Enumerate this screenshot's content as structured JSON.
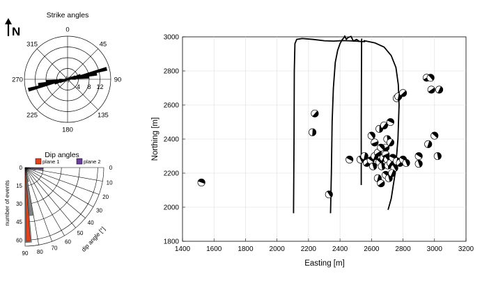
{
  "north_label": "N",
  "rose": {
    "title": "Strike angles",
    "angle_labels": [
      {
        "deg": 0,
        "text": "0"
      },
      {
        "deg": 45,
        "text": "45"
      },
      {
        "deg": 90,
        "text": "90"
      },
      {
        "deg": 135,
        "text": "135"
      },
      {
        "deg": 180,
        "text": "180"
      },
      {
        "deg": 225,
        "text": "225"
      },
      {
        "deg": 270,
        "text": "270"
      },
      {
        "deg": 315,
        "text": "315"
      }
    ],
    "radial_ticks": [
      4,
      8,
      12
    ],
    "rmax": 16,
    "petals": [
      {
        "deg": 75,
        "count": 15
      },
      {
        "deg": 80,
        "count": 11
      },
      {
        "deg": 85,
        "count": 8
      },
      {
        "deg": 70,
        "count": 5
      },
      {
        "deg": 65,
        "count": 3
      },
      {
        "deg": 60,
        "count": 2
      },
      {
        "deg": 90,
        "count": 3
      },
      {
        "deg": 50,
        "count": 1.5
      },
      {
        "deg": 100,
        "count": 1
      },
      {
        "deg": 120,
        "count": 1
      },
      {
        "deg": 30,
        "count": 1
      },
      {
        "deg": 160,
        "count": 1.2
      }
    ],
    "petal_width_deg": 5,
    "color": "#000000"
  },
  "dip": {
    "title": "Dip angles",
    "legend": [
      {
        "label": "plane 1",
        "color": "#e8401c"
      },
      {
        "label": "plane 2",
        "color": "#6a3fa0"
      }
    ],
    "ylabel": "number of events",
    "rlabel": "dip angle [°]",
    "event_ticks": [
      0,
      15,
      30,
      45,
      60
    ],
    "rmax": 65,
    "angle_ticks": [
      0,
      10,
      20,
      30,
      40,
      50,
      60,
      70,
      80,
      90
    ],
    "bars_gray": [
      {
        "dip": 0,
        "count": 4
      },
      {
        "dip": 5,
        "count": 15
      },
      {
        "dip": 10,
        "count": 9
      },
      {
        "dip": 15,
        "count": 5
      },
      {
        "dip": 20,
        "count": 3
      },
      {
        "dip": 30,
        "count": 2
      },
      {
        "dip": 60,
        "count": 4
      },
      {
        "dip": 70,
        "count": 6
      },
      {
        "dip": 75,
        "count": 12
      },
      {
        "dip": 80,
        "count": 40
      },
      {
        "dip": 85,
        "count": 62
      }
    ],
    "bar_plane1": {
      "dip": 87.5,
      "count": 61
    },
    "bar_plane2": {
      "dip": 2.5,
      "count": 15
    },
    "gray_color": "#808080"
  },
  "map": {
    "xlabel": "Easting [m]",
    "ylabel": "Northing [m]",
    "xlim": [
      1400,
      3200
    ],
    "ylim": [
      1800,
      3000
    ],
    "xticks": [
      1400,
      1600,
      1800,
      2000,
      2200,
      2400,
      2600,
      2800,
      3000,
      3200
    ],
    "yticks": [
      1800,
      2000,
      2200,
      2400,
      2600,
      2800,
      3000
    ],
    "grid": true,
    "wells": [
      {
        "points": [
          [
            2105,
            1965
          ],
          [
            2108,
            2400
          ],
          [
            2110,
            2800
          ],
          [
            2114,
            2960
          ],
          [
            2125,
            2985
          ],
          [
            2160,
            2990
          ],
          [
            2230,
            2985
          ],
          [
            2300,
            2977
          ],
          [
            2360,
            2975
          ],
          [
            2420,
            2978
          ],
          [
            2480,
            2976
          ],
          [
            2530,
            2973
          ],
          [
            2560,
            2972
          ]
        ]
      },
      {
        "points": [
          [
            2340,
            1965
          ],
          [
            2345,
            2200
          ],
          [
            2350,
            2500
          ],
          [
            2358,
            2700
          ],
          [
            2370,
            2850
          ],
          [
            2385,
            2920
          ],
          [
            2400,
            2960
          ],
          [
            2415,
            2985
          ],
          [
            2425,
            2995
          ]
        ]
      },
      {
        "points": [
          [
            2425,
            2995
          ],
          [
            2430,
            3005
          ],
          [
            2440,
            2985
          ],
          [
            2450,
            2995
          ],
          [
            2470,
            3003
          ],
          [
            2485,
            2975
          ],
          [
            2505,
            2985
          ],
          [
            2525,
            2972
          ]
        ]
      },
      {
        "points": [
          [
            2535,
            2130
          ],
          [
            2535,
            2500
          ],
          [
            2536,
            2800
          ],
          [
            2537,
            2975
          ],
          [
            2538,
            2990
          ]
        ]
      },
      {
        "points": [
          [
            2550,
            2978
          ],
          [
            2620,
            2965
          ],
          [
            2680,
            2940
          ],
          [
            2725,
            2890
          ],
          [
            2755,
            2820
          ],
          [
            2770,
            2720
          ],
          [
            2775,
            2600
          ],
          [
            2768,
            2400
          ],
          [
            2750,
            2200
          ],
          [
            2725,
            2050
          ],
          [
            2705,
            1985
          ]
        ]
      }
    ],
    "events": [
      [
        1520,
        2145
      ],
      [
        2330,
        2075
      ],
      [
        2225,
        2440
      ],
      [
        2240,
        2550
      ],
      [
        2460,
        2280
      ],
      [
        2530,
        2280
      ],
      [
        2555,
        2300
      ],
      [
        2570,
        2260
      ],
      [
        2595,
        2275
      ],
      [
        2610,
        2240
      ],
      [
        2620,
        2300
      ],
      [
        2640,
        2320
      ],
      [
        2650,
        2265
      ],
      [
        2665,
        2240
      ],
      [
        2675,
        2290
      ],
      [
        2690,
        2310
      ],
      [
        2700,
        2280
      ],
      [
        2705,
        2245
      ],
      [
        2720,
        2260
      ],
      [
        2735,
        2290
      ],
      [
        2745,
        2230
      ],
      [
        2760,
        2270
      ],
      [
        2780,
        2260
      ],
      [
        2800,
        2280
      ],
      [
        2820,
        2260
      ],
      [
        2640,
        2170
      ],
      [
        2660,
        2140
      ],
      [
        2690,
        2190
      ],
      [
        2710,
        2170
      ],
      [
        2730,
        2200
      ],
      [
        2690,
        2350
      ],
      [
        2660,
        2350
      ],
      [
        2700,
        2400
      ],
      [
        2720,
        2380
      ],
      [
        2620,
        2380
      ],
      [
        2600,
        2420
      ],
      [
        2650,
        2460
      ],
      [
        2680,
        2480
      ],
      [
        2720,
        2500
      ],
      [
        2760,
        2640
      ],
      [
        2770,
        2650
      ],
      [
        2800,
        2670
      ],
      [
        2900,
        2300
      ],
      [
        2900,
        2255
      ],
      [
        2960,
        2370
      ],
      [
        2980,
        2690
      ],
      [
        3000,
        2420
      ],
      [
        3020,
        2300
      ],
      [
        3030,
        2690
      ],
      [
        2950,
        2760
      ],
      [
        2975,
        2760
      ]
    ]
  }
}
